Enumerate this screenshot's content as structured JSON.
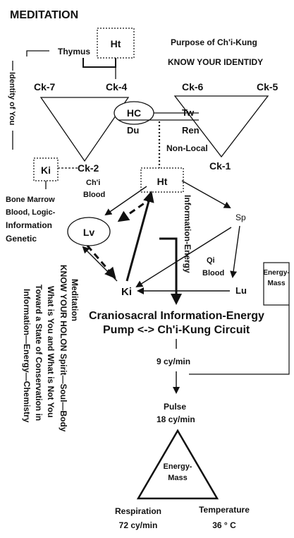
{
  "title": "MEDITATION",
  "purpose": {
    "line1": "Purpose of Ch'i-Kung",
    "line2": "KNOW YOUR IDENTIDY"
  },
  "thymus": "Thymus",
  "identity_of_you": "Identity of You",
  "nodes": {
    "ht_top": "Ht",
    "ck7": "Ck-7",
    "ck4": "Ck-4",
    "ck6": "Ck-6",
    "ck5": "Ck-5",
    "hc": "HC",
    "du": "Du",
    "tw": "Tw",
    "ren": "Ren",
    "non_local": "Non-Local",
    "ck1": "Ck-1",
    "ki_top": "Ki",
    "ck2": "Ck-2",
    "chi_blood_1": "Ch'i",
    "chi_blood_2": "Blood",
    "ht_mid": "Ht",
    "lv": "Lv",
    "sp": "Sp",
    "qi_1": "Qi",
    "qi_2": "Blood",
    "lu": "Lu",
    "ki_bottom": "Ki",
    "info_energy": "Information-Energy"
  },
  "bone_marrow": {
    "l1": "Bone Marrow",
    "l2": "Blood, Logic-",
    "l3": "Information",
    "l4": "Genetic"
  },
  "energy_mass_box": {
    "l1": "Energy-",
    "l2": "Mass"
  },
  "cranio": {
    "l1": "Craniosacral Information-Energy",
    "l2": "Pump <-> Ch'i-Kung Circuit"
  },
  "rate_9": "9 cy/min",
  "pulse": {
    "l1": "Pulse",
    "l2": "18 cy/min"
  },
  "triangle_label": {
    "l1": "Energy-",
    "l2": "Mass"
  },
  "respiration": {
    "l1": "Respiration",
    "l2": "72 cy/min"
  },
  "temperature": {
    "l1": "Temperature",
    "l2": "36 ° C"
  },
  "vertical_notes": [
    "Meditation",
    "KNOW YOUR HOLON Spirit—Soul—Body",
    "What is You and What is Not You",
    "Toward a State of Conservation in",
    "Information—Energy—Chemistry"
  ]
}
